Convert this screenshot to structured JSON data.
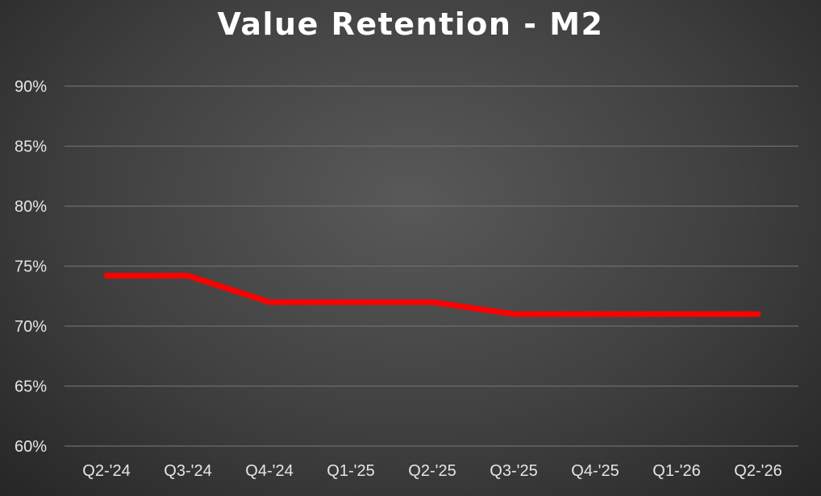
{
  "chart_data": {
    "type": "line",
    "title": "Value Retention - M2",
    "xlabel": "",
    "ylabel": "",
    "categories": [
      "Q2-'24",
      "Q3-'24",
      "Q4-'24",
      "Q1-'25",
      "Q2-'25",
      "Q3-'25",
      "Q4-'25",
      "Q1-'26",
      "Q2-'26"
    ],
    "series": [
      {
        "values": [
          74.2,
          74.2,
          72.0,
          72.0,
          72.0,
          71.0,
          71.0,
          71.0,
          71.0
        ],
        "color": "#ff0000"
      }
    ],
    "ylim": [
      60,
      90
    ],
    "yticks": [
      60,
      65,
      70,
      75,
      80,
      85,
      90
    ],
    "ytick_labels": [
      "60%",
      "65%",
      "70%",
      "75%",
      "80%",
      "85%",
      "90%"
    ],
    "grid": true,
    "legend": "none",
    "gridline_color": "#6e6e6e",
    "background_color": "#404040"
  }
}
